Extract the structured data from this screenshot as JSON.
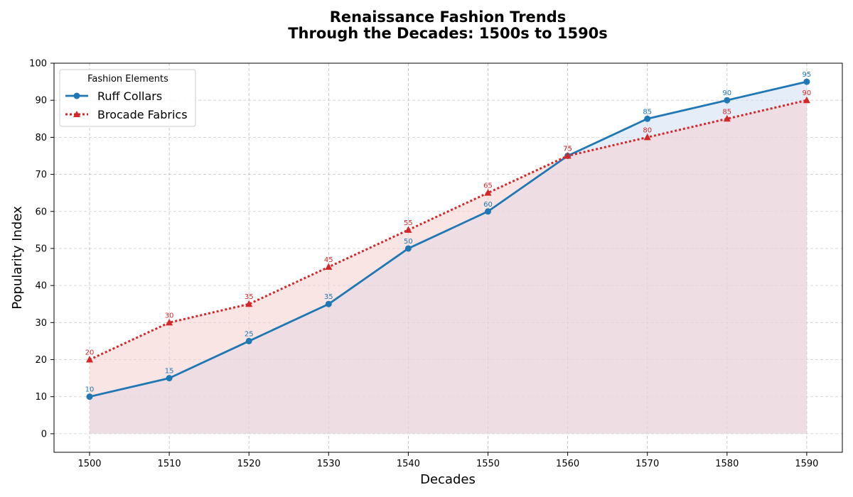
{
  "chart_data": {
    "type": "line",
    "title": [
      "Renaissance Fashion Trends",
      "Through the Decades: 1500s to 1590s"
    ],
    "xlabel": "Decades",
    "ylabel": "Popularity Index",
    "x": [
      "1500",
      "1510",
      "1520",
      "1530",
      "1540",
      "1550",
      "1560",
      "1570",
      "1580",
      "1590"
    ],
    "ylim": [
      -5,
      100
    ],
    "yticks": [
      0,
      10,
      20,
      30,
      40,
      50,
      60,
      70,
      80,
      90,
      100
    ],
    "grid": true,
    "legend": {
      "title": "Fashion Elements",
      "placement": "top-left"
    },
    "series": [
      {
        "name": "Ruff Collars",
        "values": [
          10,
          15,
          25,
          35,
          50,
          60,
          75,
          85,
          90,
          95
        ],
        "color": "#1f77b4",
        "style": "solid",
        "marker": "circle",
        "fill": "#cfe0f3"
      },
      {
        "name": "Brocade Fabrics",
        "values": [
          20,
          30,
          35,
          45,
          55,
          65,
          75,
          80,
          85,
          90
        ],
        "color": "#d62728",
        "style": "dotted",
        "marker": "triangle",
        "fill": "#f6cfcf"
      }
    ]
  }
}
